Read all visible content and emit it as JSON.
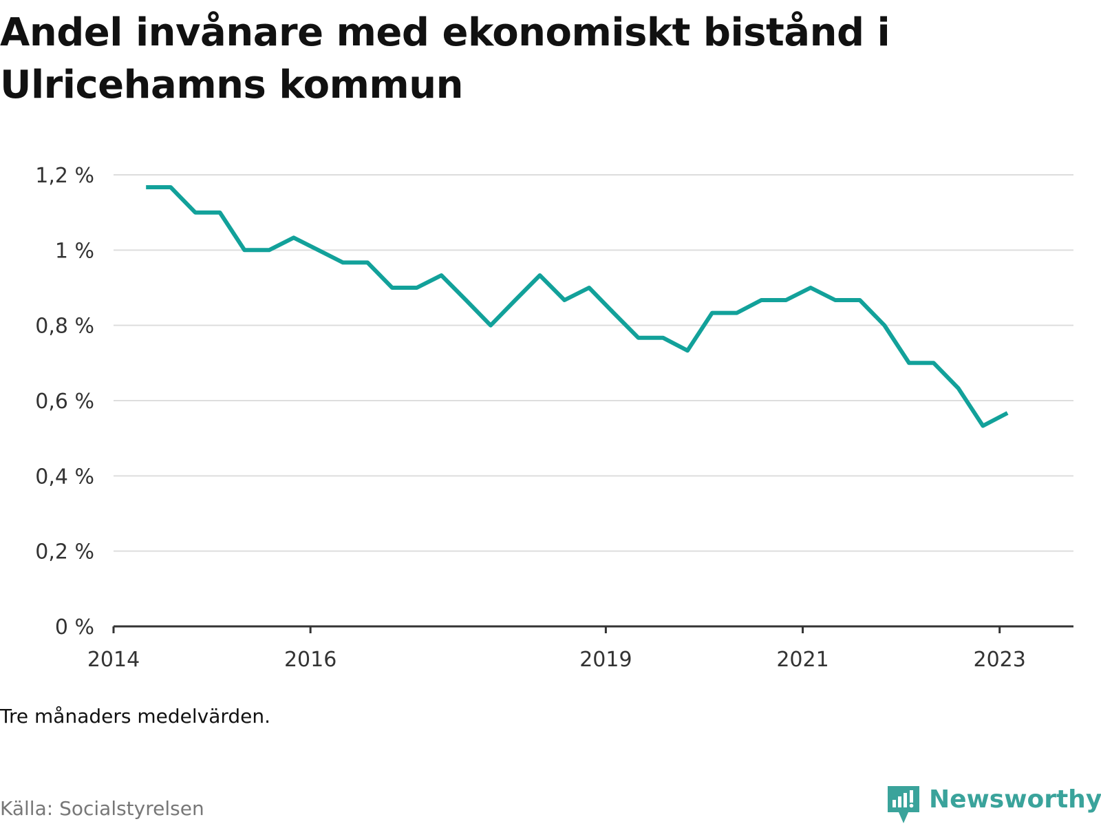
{
  "chart_data": {
    "type": "line",
    "title": "Andel invånare med ekonomiskt bistånd i Ulricehamns kommun",
    "xlabel": "",
    "ylabel": "",
    "ylim": [
      0,
      1.2
    ],
    "yticks": [
      0,
      0.2,
      0.4,
      0.6,
      0.8,
      1.0,
      1.2
    ],
    "ytick_labels": [
      "0 %",
      "0,2 %",
      "0,4 %",
      "0,6 %",
      "0,8 %",
      "1 %",
      "1,2 %"
    ],
    "xlim": [
      2014.0,
      2023.75
    ],
    "xticks": [
      2014,
      2016,
      2019,
      2021,
      2023
    ],
    "xtick_labels": [
      "2014",
      "2016",
      "2019",
      "2021",
      "2023"
    ],
    "grid": true,
    "series": [
      {
        "name": "Andel invånare med ekonomiskt bistånd",
        "color": "#12a19a",
        "x": [
          2014.33,
          2014.58,
          2014.83,
          2015.08,
          2015.33,
          2015.58,
          2015.83,
          2016.08,
          2016.33,
          2016.58,
          2016.83,
          2017.08,
          2017.33,
          2017.58,
          2017.83,
          2018.08,
          2018.33,
          2018.58,
          2018.83,
          2019.08,
          2019.33,
          2019.58,
          2019.83,
          2020.08,
          2020.33,
          2020.58,
          2020.83,
          2021.08,
          2021.33,
          2021.58,
          2021.83,
          2022.08,
          2022.33,
          2022.58,
          2022.83,
          2023.08
        ],
        "y": [
          1.167,
          1.167,
          1.1,
          1.1,
          1.0,
          1.0,
          1.033,
          1.0,
          0.967,
          0.967,
          0.9,
          0.9,
          0.933,
          0.867,
          0.8,
          0.867,
          0.933,
          0.867,
          0.9,
          0.833,
          0.767,
          0.767,
          0.733,
          0.833,
          0.833,
          0.867,
          0.867,
          0.9,
          0.867,
          0.867,
          0.8,
          0.7,
          0.7,
          0.633,
          0.533,
          0.567
        ]
      }
    ]
  },
  "note": "Tre månaders medelvärden.",
  "source": "Källa: Socialstyrelsen",
  "brand": "Newsworthy"
}
